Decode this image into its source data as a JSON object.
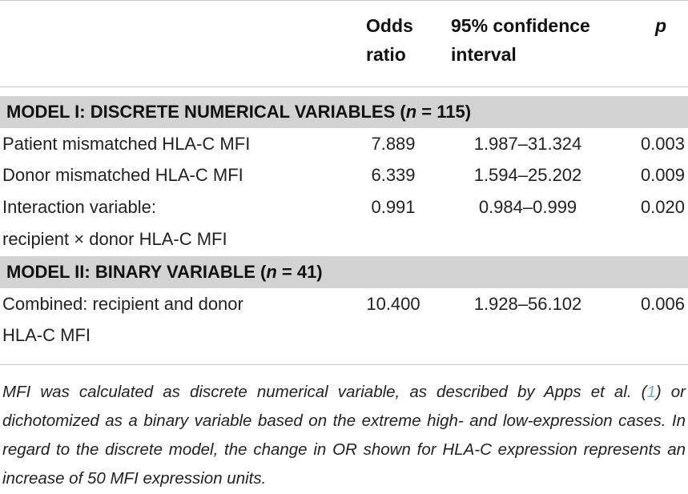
{
  "header": {
    "odds_line1": "Odds",
    "odds_line2": "ratio",
    "ci_line1": "95% confidence",
    "ci_line2": "interval",
    "p": "p"
  },
  "model1": {
    "title_prefix": "MODEL I: DISCRETE NUMERICAL VARIABLES (",
    "n_label": "n",
    "title_suffix": " = 115)",
    "rows": [
      {
        "label": "Patient mismatched HLA-C MFI",
        "or": "7.889",
        "ci": "1.987–31.324",
        "p": "0.003"
      },
      {
        "label": "Donor mismatched HLA-C MFI",
        "or": "6.339",
        "ci": "1.594–25.202",
        "p": "0.009"
      },
      {
        "label": "Interaction variable:",
        "label2": "recipient × donor HLA-C MFI",
        "or": "0.991",
        "ci": "0.984–0.999",
        "p": "0.020"
      }
    ]
  },
  "model2": {
    "title_prefix": "MODEL II: BINARY VARIABLE (",
    "n_label": "n",
    "title_suffix": " = 41)",
    "rows": [
      {
        "label": "Combined: recipient and donor",
        "label2": "HLA-C MFI",
        "or": "10.400",
        "ci": "1.928–56.102",
        "p": "0.006"
      }
    ]
  },
  "footnote": {
    "part1": "MFI was calculated as discrete numerical variable, as described by Apps et al. (",
    "ref": "1",
    "part2": ") or dichotomized as a binary variable based on the extreme high- and low-expression cases. In regard to the discrete model, the change in OR shown for HLA-C expression represents an increase of 50 MFI expression units."
  }
}
